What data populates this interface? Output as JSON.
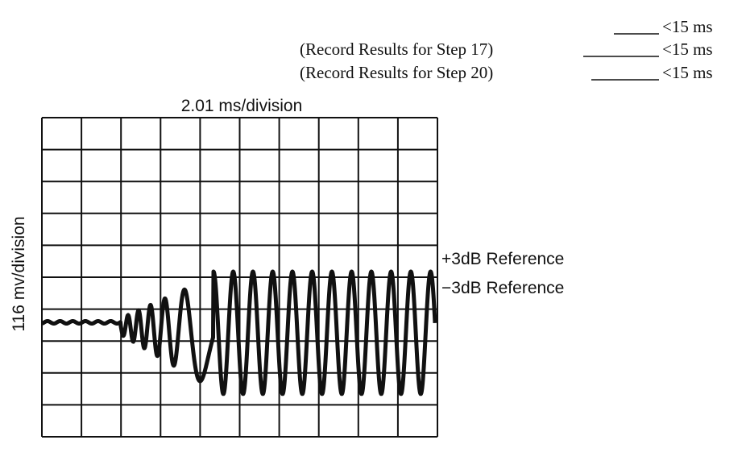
{
  "results": [
    {
      "result": "<15 ms"
    },
    {
      "label": "(Record Results for Step 17)",
      "result": "<15 ms"
    },
    {
      "label": "(Record Results for Step 20)",
      "result": "<15 ms"
    }
  ],
  "figure": {
    "x_scale": "2.01 ms/division",
    "y_scale": "116 mv/division",
    "references": [
      "+3dB Reference",
      "−3dB Reference"
    ]
  }
}
